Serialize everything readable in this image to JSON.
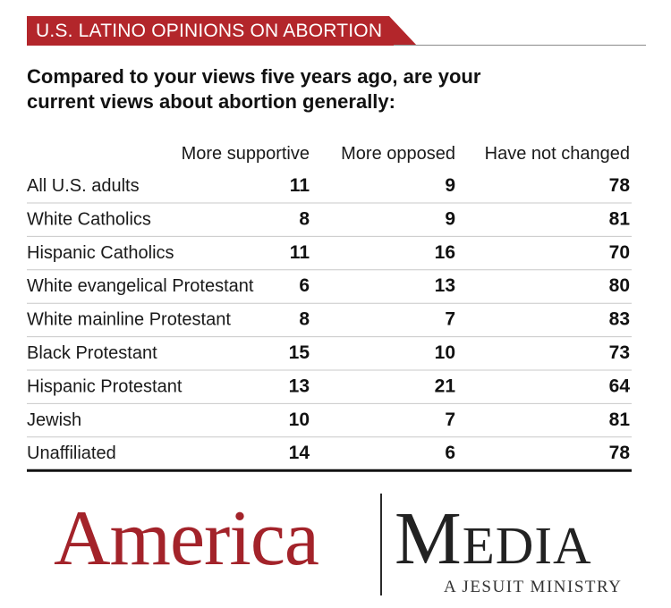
{
  "banner": {
    "title": "U.S. LATINO OPINIONS ON ABORTION"
  },
  "question": "Compared to your views five years ago, are your current views about abortion generally:",
  "chart_data": {
    "type": "table",
    "columns": [
      "More supportive",
      "More opposed",
      "Have not changed"
    ],
    "rows": [
      {
        "label": "All U.S. adults",
        "values": [
          11,
          9,
          78
        ]
      },
      {
        "label": "White Catholics",
        "values": [
          8,
          9,
          81
        ]
      },
      {
        "label": "Hispanic Catholics",
        "values": [
          11,
          16,
          70
        ]
      },
      {
        "label": "White evangelical Protestant",
        "values": [
          6,
          13,
          80
        ]
      },
      {
        "label": "White mainline Protestant",
        "values": [
          8,
          7,
          83
        ]
      },
      {
        "label": "Black Protestant",
        "values": [
          15,
          10,
          73
        ]
      },
      {
        "label": "Hispanic Protestant",
        "values": [
          13,
          21,
          64
        ]
      },
      {
        "label": "Jewish",
        "values": [
          10,
          7,
          81
        ]
      },
      {
        "label": "Unaffiliated",
        "values": [
          14,
          6,
          78
        ]
      }
    ]
  },
  "logo": {
    "left_word": "America",
    "right_word": "Media",
    "tagline": "A JESUIT MINISTRY"
  }
}
